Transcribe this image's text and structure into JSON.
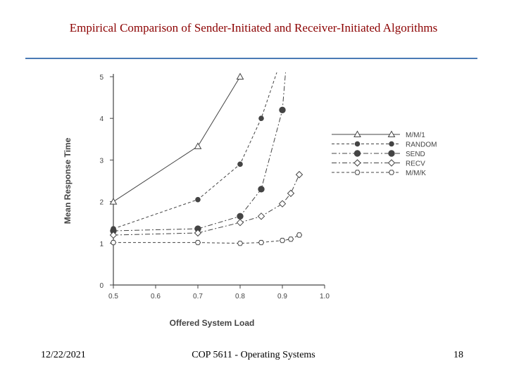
{
  "slide": {
    "title": "Empirical Comparison of Sender-Initiated and Receiver-Initiated Algorithms",
    "footer_date": "12/22/2021",
    "footer_course": "COP 5611 - Operating Systems",
    "footer_page": "18"
  },
  "colors": {
    "title": "#8b0000",
    "rule": "#4a7ab5",
    "ink": "#444444"
  },
  "chart_data": {
    "type": "line",
    "xlabel": "Offered System Load",
    "ylabel": "Mean Response Time",
    "xlim": [
      0.5,
      1.0
    ],
    "ylim": [
      0,
      5
    ],
    "xticks": [
      "0.5",
      "0.6",
      "0.7",
      "0.8",
      "0.9",
      "1.0"
    ],
    "yticks": [
      "0",
      "1",
      "2",
      "3",
      "4",
      "5"
    ],
    "grid": false,
    "legend_position": "right",
    "series": [
      {
        "name": "M/M/1",
        "marker": "triangle",
        "dash": "solid",
        "x": [
          0.5,
          0.7,
          0.8
        ],
        "y": [
          2.0,
          3.33,
          5.0
        ]
      },
      {
        "name": "RANDOM",
        "marker": "filled-circle-small",
        "dash": "dashed",
        "x": [
          0.5,
          0.7,
          0.8,
          0.85,
          0.9
        ],
        "y": [
          1.35,
          2.05,
          2.9,
          4.0,
          5.5
        ]
      },
      {
        "name": "SEND",
        "marker": "filled-circle",
        "dash": "dashdot",
        "x": [
          0.5,
          0.7,
          0.8,
          0.85,
          0.9,
          0.91
        ],
        "y": [
          1.3,
          1.35,
          1.65,
          2.3,
          4.2,
          5.4
        ]
      },
      {
        "name": "RECV",
        "marker": "diamond",
        "dash": "dashdot",
        "x": [
          0.5,
          0.7,
          0.8,
          0.85,
          0.9,
          0.92,
          0.94
        ],
        "y": [
          1.2,
          1.25,
          1.5,
          1.65,
          1.95,
          2.2,
          2.65
        ]
      },
      {
        "name": "M/M/K",
        "marker": "hexagon",
        "dash": "dashed",
        "x": [
          0.5,
          0.7,
          0.8,
          0.85,
          0.9,
          0.92,
          0.94
        ],
        "y": [
          1.02,
          1.02,
          1.0,
          1.02,
          1.07,
          1.1,
          1.2
        ]
      }
    ]
  }
}
